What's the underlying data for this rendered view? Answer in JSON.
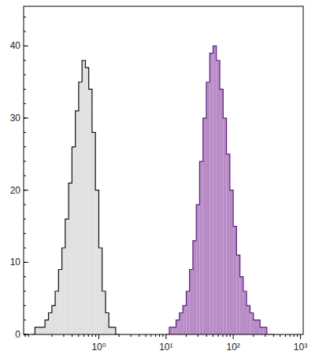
{
  "chart_data": {
    "type": "histogram",
    "log": "x",
    "grid": false,
    "xlim": [
      0.076,
      1100
    ],
    "ylim": [
      0,
      45.5
    ],
    "xticks": [
      {
        "value": 1,
        "label": "10⁰"
      },
      {
        "value": 10,
        "label": "10¹"
      },
      {
        "value": 100,
        "label": "10²"
      },
      {
        "value": 1000,
        "label": "10³"
      }
    ],
    "yticks": [
      0,
      10,
      20,
      30,
      40
    ],
    "series": [
      {
        "color": "#e0e0e0",
        "bins": [
          0.1,
          0.112,
          0.126,
          0.141,
          0.158,
          0.178,
          0.2,
          0.224,
          0.251,
          0.282,
          0.316,
          0.355,
          0.398,
          0.447,
          0.501,
          0.562,
          0.631,
          0.708,
          0.794,
          0.891,
          1,
          1.12,
          1.26,
          1.41,
          1.58,
          1.78,
          2
        ],
        "values": [
          0,
          1,
          1,
          1,
          2,
          3,
          4,
          6,
          9,
          12,
          16,
          21,
          26,
          31,
          35,
          38,
          37,
          34,
          28,
          20,
          12,
          6,
          3,
          1,
          1,
          0
        ]
      },
      {
        "color": "#b98bc6",
        "bins": [
          10,
          11.2,
          12.6,
          14.1,
          15.8,
          17.8,
          20,
          22.4,
          25.1,
          28.2,
          31.6,
          35.5,
          39.8,
          44.7,
          50.1,
          56.2,
          63.1,
          70.8,
          79.4,
          89.1,
          100,
          112,
          126,
          141,
          158,
          178,
          200,
          224,
          251,
          282,
          316,
          355,
          398
        ],
        "values": [
          0,
          1,
          1,
          2,
          3,
          4,
          6,
          9,
          13,
          18,
          24,
          30,
          35,
          39,
          40,
          38,
          34,
          30,
          25,
          20,
          15,
          11,
          8,
          6,
          4,
          3,
          2,
          2,
          1,
          1,
          0,
          0
        ]
      }
    ]
  }
}
